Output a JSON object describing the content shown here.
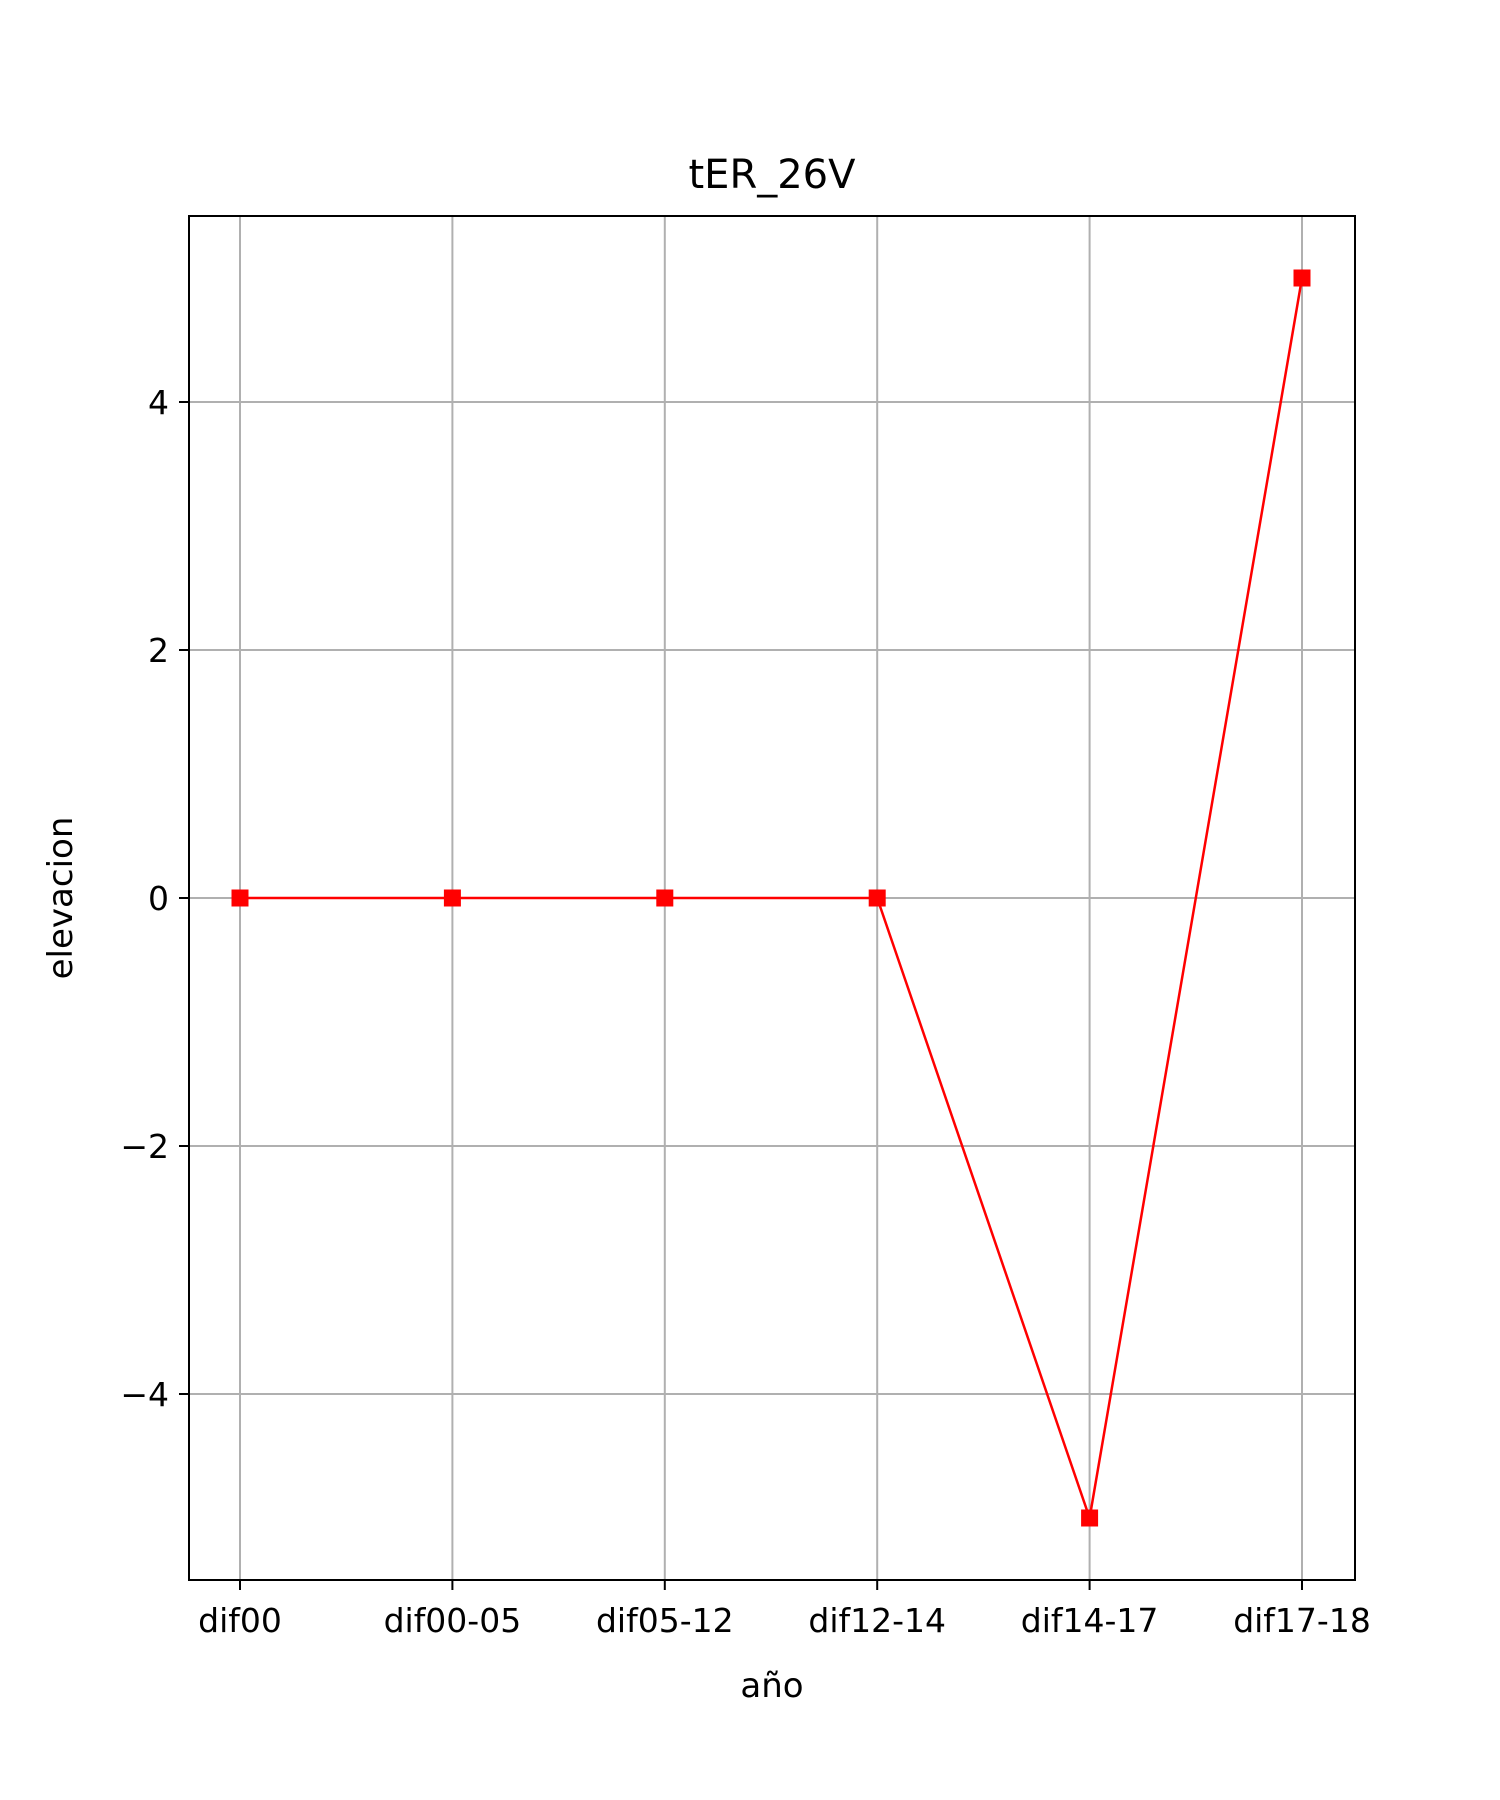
{
  "chart_data": {
    "type": "line",
    "title": "tER_26V",
    "xlabel": "año",
    "ylabel": "elevacion",
    "categories": [
      "dif00",
      "dif00-05",
      "dif05-12",
      "dif12-14",
      "dif14-17",
      "dif17-18"
    ],
    "series": [
      {
        "values": [
          0,
          0,
          0,
          0,
          -5,
          5
        ],
        "color": "#ff0000",
        "marker": "square"
      }
    ],
    "ylim": [
      -5.5,
      5.5
    ],
    "yticks": [
      -4,
      -2,
      0,
      2,
      4
    ],
    "ytick_labels": [
      "−4",
      "−2",
      "0",
      "2",
      "4"
    ],
    "grid": true,
    "legend": "none"
  }
}
